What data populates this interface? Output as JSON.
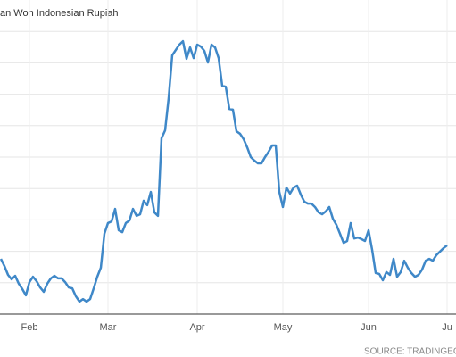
{
  "chart_data": {
    "type": "line",
    "title": "an Won Indonesian Rupiah",
    "source": "SOURCE: TRADINGECON",
    "categories": [
      null,
      null,
      null,
      null,
      null,
      null,
      null,
      null,
      "Feb",
      null,
      null,
      null,
      null,
      null,
      null,
      null,
      null,
      null,
      null,
      null,
      null,
      null,
      null,
      null,
      null,
      null,
      null,
      null,
      null,
      null,
      "Mar",
      null,
      null,
      null,
      null,
      null,
      null,
      null,
      null,
      null,
      null,
      null,
      null,
      null,
      null,
      null,
      null,
      null,
      null,
      null,
      null,
      null,
      null,
      null,
      null,
      "Apr",
      null,
      null,
      null,
      null,
      null,
      null,
      null,
      null,
      null,
      null,
      null,
      null,
      null,
      null,
      null,
      null,
      null,
      null,
      null,
      null,
      null,
      null,
      null,
      "May",
      null,
      null,
      null,
      null,
      null,
      null,
      null,
      null,
      null,
      null,
      null,
      null,
      null,
      null,
      null,
      null,
      null,
      null,
      null,
      null,
      null,
      null,
      null,
      "Jun",
      null,
      null,
      null,
      null,
      null,
      null,
      null,
      null,
      null,
      null,
      null,
      null,
      null,
      null,
      null,
      null,
      null,
      null,
      null,
      null,
      null,
      "Ju"
    ],
    "values": [
      1.76,
      1.53,
      1.25,
      1.11,
      1.22,
      0.97,
      0.8,
      0.6,
      1.02,
      1.19,
      1.05,
      0.85,
      0.71,
      0.97,
      1.14,
      1.22,
      1.14,
      1.14,
      1.02,
      0.85,
      0.82,
      0.57,
      0.4,
      0.48,
      0.4,
      0.48,
      0.82,
      1.19,
      1.48,
      2.56,
      2.9,
      2.95,
      3.35,
      2.67,
      2.61,
      2.9,
      2.98,
      3.35,
      3.13,
      3.18,
      3.61,
      3.47,
      3.89,
      3.24,
      3.13,
      5.6,
      5.85,
      6.88,
      8.24,
      8.41,
      8.58,
      8.69,
      8.13,
      8.49,
      8.15,
      8.58,
      8.52,
      8.38,
      8.01,
      8.58,
      8.49,
      8.15,
      7.27,
      7.24,
      6.53,
      6.51,
      5.82,
      5.74,
      5.57,
      5.31,
      5.0,
      4.89,
      4.8,
      4.8,
      5.0,
      5.17,
      5.37,
      5.37,
      3.89,
      3.41,
      4.03,
      3.84,
      4.03,
      4.09,
      3.81,
      3.58,
      3.52,
      3.52,
      3.41,
      3.24,
      3.18,
      3.27,
      3.41,
      3.04,
      2.84,
      2.56,
      2.27,
      2.33,
      2.9,
      2.41,
      2.44,
      2.39,
      2.33,
      2.67,
      2.05,
      1.31,
      1.28,
      1.08,
      1.34,
      1.25,
      1.76,
      1.19,
      1.34,
      1.7,
      1.48,
      1.31,
      1.19,
      1.25,
      1.42,
      1.7,
      1.76,
      1.7,
      1.88,
      1.99,
      2.1,
      2.19
    ],
    "color": "#3f88c8",
    "ylim": [
      0,
      10
    ],
    "yticks": [
      1,
      2,
      3,
      4,
      5,
      6,
      7,
      8,
      9
    ],
    "grid": true
  }
}
